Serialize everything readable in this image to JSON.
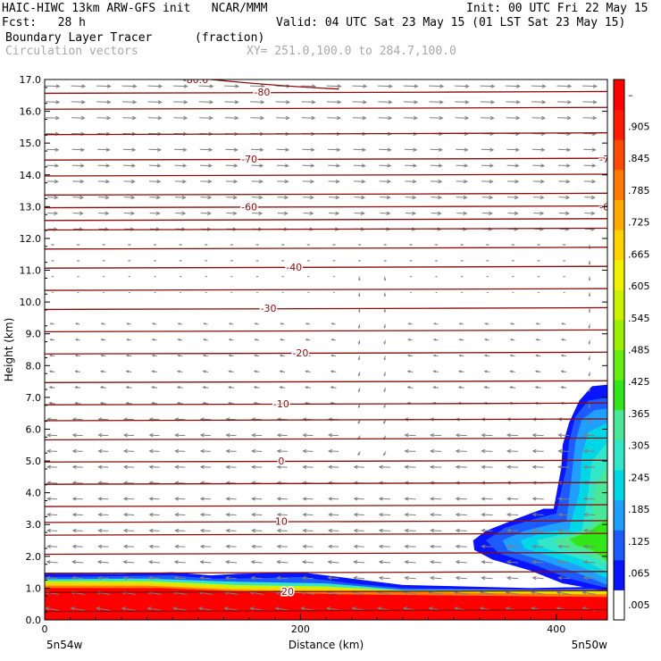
{
  "header": {
    "line1_left": "HAIC-HIWC 13km ARW-GFS init   NCAR/MMM",
    "line1_right": "Init: 00 UTC Fri 22 May 15",
    "line2_left": "Fcst:   28 h",
    "line2_right": "Valid: 04 UTC Sat 23 May 15 (01 LST Sat 23 May 15)",
    "field_name": "Boundary Layer Tracer",
    "field_units": "(fraction)",
    "vector_label": "Circulation vectors",
    "xsec_label": "XY= 251.0,100.0 to 284.7,100.0"
  },
  "chart_data": {
    "type": "heatmap",
    "title": "Boundary Layer Tracer",
    "xlabel": "Distance (km)",
    "ylabel": "Height (km)",
    "xlim": [
      0,
      440
    ],
    "ylim": [
      0,
      17
    ],
    "x_ticks": [
      "0",
      "200",
      "400"
    ],
    "x_tick_values": [
      0,
      200,
      400
    ],
    "y_ticks": [
      "0.0",
      "1.0",
      "2.0",
      "3.0",
      "4.0",
      "5.0",
      "6.0",
      "7.0",
      "8.0",
      "9.0",
      "10.0",
      "11.0",
      "12.0",
      "13.0",
      "14.0",
      "15.0",
      "16.0",
      "17.0"
    ],
    "x_endpoint_labels": [
      "5n54w",
      "5n50w"
    ],
    "colorbar": {
      "labels": [
        ".005",
        ".065",
        ".125",
        ".185",
        ".245",
        ".305",
        ".365",
        ".425",
        ".485",
        ".545",
        ".605",
        ".665",
        ".725",
        ".785",
        ".845",
        ".905",
        "–"
      ],
      "colors": [
        "#ffffff",
        "#0a14ff",
        "#1e5bff",
        "#1fa0ff",
        "#00d7e6",
        "#33e6c8",
        "#4ce699",
        "#33e61a",
        "#66ee11",
        "#99f000",
        "#ccf200",
        "#f2f200",
        "#ffd200",
        "#ffaa00",
        "#ff7a00",
        "#ff4a00",
        "#ff1a00",
        "#ff0000"
      ]
    },
    "temperature_contours": [
      {
        "label": "-80.6",
        "height_km": 17.0
      },
      {
        "label": "-80",
        "height_km": 16.6
      },
      {
        "label": "-70",
        "height_km": 14.5
      },
      {
        "label": "-70",
        "height_km": 14.5
      },
      {
        "label": "-60",
        "height_km": 13.0
      },
      {
        "label": "-60",
        "height_km": 13.0
      },
      {
        "label": "-40",
        "height_km": 11.1
      },
      {
        "label": "-30",
        "height_km": 9.8
      },
      {
        "label": "-20",
        "height_km": 8.4
      },
      {
        "label": "-10",
        "height_km": 6.8
      },
      {
        "label": "0",
        "height_km": 5.0
      },
      {
        "label": "10",
        "height_km": 3.1
      },
      {
        "label": "20",
        "height_km": 0.9
      }
    ],
    "contour_levels_km": [
      0.3,
      0.9,
      1.5,
      2.1,
      2.7,
      3.1,
      3.6,
      4.3,
      5.0,
      5.7,
      6.3,
      6.8,
      7.5,
      8.4,
      9.1,
      9.8,
      10.4,
      11.1,
      11.7,
      12.3,
      12.6,
      13.0,
      13.4,
      14.0,
      14.5,
      15.3,
      16.1,
      16.6
    ],
    "tracer_regions": [
      {
        "name": "surface boundary layer",
        "x_km": [
          0,
          440
        ],
        "top_km": 1.4,
        "max_value": 0.905
      },
      {
        "name": "eastern deep plume",
        "x_km": [
          335,
          440
        ],
        "top_km": 7.4,
        "max_value": 0.365
      }
    ],
    "grid": false,
    "legend": "right colorbar"
  }
}
